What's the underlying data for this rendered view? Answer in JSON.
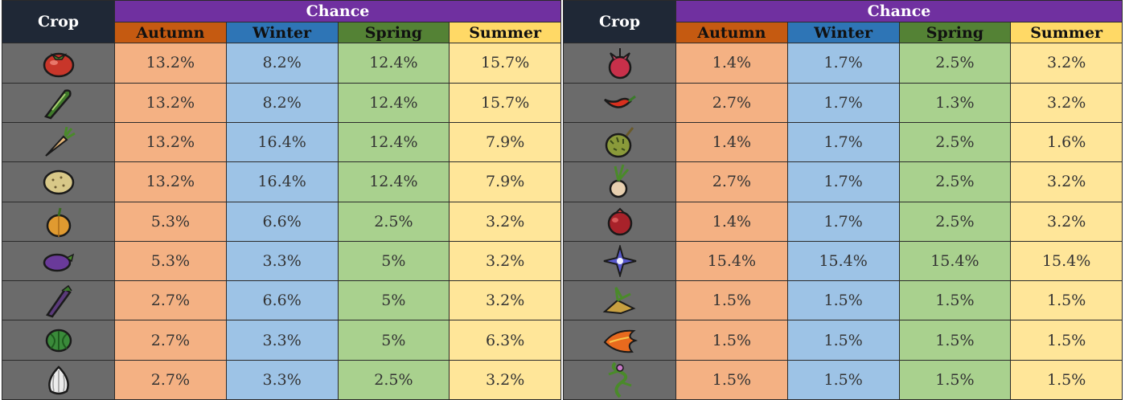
{
  "headers": {
    "crop": "Crop",
    "chance": "Chance",
    "seasons": [
      "Autumn",
      "Winter",
      "Spring",
      "Summer"
    ]
  },
  "colors": {
    "chance_header": "#7030a0",
    "crop_header": "#1f2836",
    "autumn_header": "#c55a11",
    "winter_header": "#2e75b6",
    "spring_header": "#548235",
    "summer_header": "#ffd966",
    "autumn_cell": "#f4b183",
    "winter_cell": "#9dc3e6",
    "spring_cell": "#a9d18e",
    "summer_cell": "#ffe699",
    "icon_cell": "#6b6b6b"
  },
  "left_rows": [
    {
      "icon": "tomato-icon",
      "values": [
        "13.2%",
        "8.2%",
        "12.4%",
        "15.7%"
      ]
    },
    {
      "icon": "corn-icon",
      "values": [
        "13.2%",
        "8.2%",
        "12.4%",
        "15.7%"
      ]
    },
    {
      "icon": "carrot-icon",
      "values": [
        "13.2%",
        "16.4%",
        "12.4%",
        "7.9%"
      ]
    },
    {
      "icon": "potato-icon",
      "values": [
        "13.2%",
        "16.4%",
        "12.4%",
        "7.9%"
      ]
    },
    {
      "icon": "pumpkin-icon",
      "values": [
        "5.3%",
        "6.6%",
        "2.5%",
        "3.2%"
      ]
    },
    {
      "icon": "eggplant-icon",
      "values": [
        "5.3%",
        "3.3%",
        "5%",
        "3.2%"
      ]
    },
    {
      "icon": "asparagus-icon",
      "values": [
        "2.7%",
        "6.6%",
        "5%",
        "3.2%"
      ]
    },
    {
      "icon": "watermelon-icon",
      "values": [
        "2.7%",
        "3.3%",
        "5%",
        "6.3%"
      ]
    },
    {
      "icon": "garlic-icon",
      "values": [
        "2.7%",
        "3.3%",
        "2.5%",
        "3.2%"
      ]
    }
  ],
  "right_rows": [
    {
      "icon": "dragon-fruit-icon",
      "values": [
        "1.4%",
        "1.7%",
        "2.5%",
        "3.2%"
      ]
    },
    {
      "icon": "pepper-icon",
      "values": [
        "2.7%",
        "1.7%",
        "1.3%",
        "3.2%"
      ]
    },
    {
      "icon": "durian-icon",
      "values": [
        "1.4%",
        "1.7%",
        "2.5%",
        "1.6%"
      ]
    },
    {
      "icon": "onion-icon",
      "values": [
        "2.7%",
        "1.7%",
        "2.5%",
        "3.2%"
      ]
    },
    {
      "icon": "pomegranate-icon",
      "values": [
        "1.4%",
        "1.7%",
        "2.5%",
        "3.2%"
      ]
    },
    {
      "icon": "flower-icon",
      "values": [
        "15.4%",
        "15.4%",
        "15.4%",
        "15.4%"
      ]
    },
    {
      "icon": "seed-cluster-icon",
      "values": [
        "1.5%",
        "1.5%",
        "1.5%",
        "1.5%"
      ]
    },
    {
      "icon": "fire-leaf-icon",
      "values": [
        "1.5%",
        "1.5%",
        "1.5%",
        "1.5%"
      ]
    },
    {
      "icon": "vine-plant-icon",
      "values": [
        "1.5%",
        "1.5%",
        "1.5%",
        "1.5%"
      ]
    }
  ]
}
